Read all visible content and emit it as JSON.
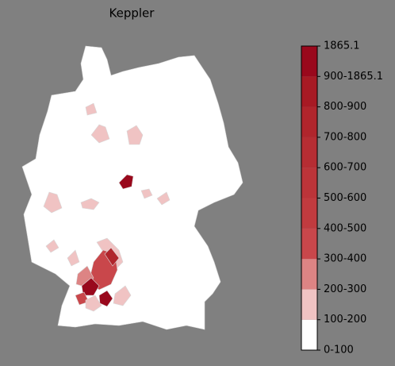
{
  "title": "Keppler",
  "colorbar": {
    "labels": [
      "0-100",
      "100-200",
      "200-300",
      "300-400",
      "400-500",
      "500-600",
      "600-700",
      "700-800",
      "800-900",
      "900-1865.1",
      "1865.1"
    ],
    "colors": [
      "#ffffff",
      "#f0c3c3",
      "#dd8484",
      "#c9474b",
      "#c13b3f",
      "#bc3439",
      "#b62d33",
      "#b0252c",
      "#a71a24",
      "#99081c"
    ]
  }
}
